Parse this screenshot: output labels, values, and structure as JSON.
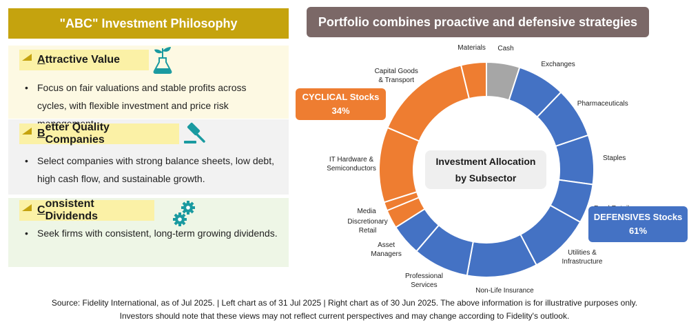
{
  "left": {
    "title": "\"ABC\" Investment Philosophy",
    "sections": [
      {
        "heading_first": "A",
        "heading_rest": "ttractive Value",
        "bullet": "Focus on fair valuations and stable profits across cycles, with flexible investment and price risk management.",
        "icon": "plant-flask-icon"
      },
      {
        "heading_first": "B",
        "heading_rest": "etter Quality Companies",
        "bullet": "Select companies with strong balance sheets, low debt, high cash flow, and sustainable growth.",
        "icon": "gavel-icon"
      },
      {
        "heading_first": "C",
        "heading_rest": "onsistent Dividends",
        "bullet": "Seek firms with consistent, long-term growing dividends.",
        "icon": "gears-icon"
      }
    ]
  },
  "right": {
    "title": "Portfolio combines proactive and defensive strategies",
    "center_line1": "Investment Allocation",
    "center_line2": "by Subsector",
    "cyclical_label": "CYCLICAL Stocks",
    "cyclical_value": "34%",
    "defensive_label": "DEFENSIVES Stocks",
    "defensive_value": "61%"
  },
  "chart_data": {
    "type": "pie",
    "variant": "donut",
    "title": "Investment Allocation by Subsector",
    "unit": "%",
    "groups": [
      {
        "name": "CYCLICAL Stocks",
        "total": 34,
        "color": "#ee7d31"
      },
      {
        "name": "DEFENSIVES Stocks",
        "total": 61,
        "color": "#4472c4"
      }
    ],
    "slices": [
      {
        "label": "Cash",
        "value": 5.0,
        "group": "Cash",
        "color": "#a6a6a6"
      },
      {
        "label": "Exchanges",
        "value": 7.2,
        "group": "DEFENSIVES Stocks",
        "color": "#4472c4"
      },
      {
        "label": "Pharmaceuticals",
        "value": 7.6,
        "group": "DEFENSIVES Stocks",
        "color": "#4472c4"
      },
      {
        "label": "Staples",
        "value": 7.4,
        "group": "DEFENSIVES Stocks",
        "color": "#4472c4"
      },
      {
        "label": "Food Retail",
        "value": 5.9,
        "group": "DEFENSIVES Stocks",
        "color": "#4472c4"
      },
      {
        "label": "Utilities & Infrastructure",
        "value": 9.2,
        "group": "DEFENSIVES Stocks",
        "color": "#4472c4"
      },
      {
        "label": "Non-Life Insurance",
        "value": 10.6,
        "group": "DEFENSIVES Stocks",
        "color": "#4472c4"
      },
      {
        "label": "Professional Services",
        "value": 8.4,
        "group": "DEFENSIVES Stocks",
        "color": "#4472c4"
      },
      {
        "label": "Asset Managers",
        "value": 4.7,
        "group": "DEFENSIVES Stocks",
        "color": "#4472c4"
      },
      {
        "label": "Discretionary Retail",
        "value": 2.8,
        "group": "CYCLICAL Stocks",
        "color": "#ee7d31"
      },
      {
        "label": "Media",
        "value": 1.3,
        "group": "CYCLICAL Stocks",
        "color": "#ee7d31"
      },
      {
        "label": "IT Hardware & Semiconductors",
        "value": 11.3,
        "group": "CYCLICAL Stocks",
        "color": "#ee7d31"
      },
      {
        "label": "Capital Goods & Transport",
        "value": 14.8,
        "group": "CYCLICAL Stocks",
        "color": "#ee7d31"
      },
      {
        "label": "Materials",
        "value": 3.8,
        "group": "CYCLICAL Stocks",
        "color": "#ee7d31"
      }
    ],
    "label_lines": [
      [
        "Cash"
      ],
      [
        "Exchanges"
      ],
      [
        "Pharmaceuticals"
      ],
      [
        "Staples"
      ],
      [
        "Food Retail"
      ],
      [
        "Utilities &",
        "Infrastructure"
      ],
      [
        "Non-Life Insurance"
      ],
      [
        "Professional",
        "Services"
      ],
      [
        "Asset",
        "Managers"
      ],
      [
        "Discretionary",
        "Retail"
      ],
      [
        "Media"
      ],
      [
        "IT Hardware &",
        "Semiconductors"
      ],
      [
        "Capital Goods",
        "& Transport"
      ],
      [
        "Materials"
      ]
    ]
  },
  "footer": {
    "line1": "Source: Fidelity International, as of Jul 2025. | Left chart as of 31 Jul 2025 | Right chart as of 30 Jun 2025.  The above information is for illustrative purposes only.",
    "line2": "Investors should note that these views may not reflect current perspectives and may change according to Fidelity's outlook."
  }
}
